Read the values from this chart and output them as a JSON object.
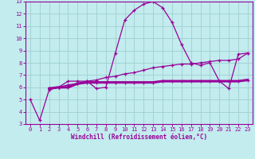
{
  "xlabel": "Windchill (Refroidissement éolien,°C)",
  "background_color": "#c2ecee",
  "grid_color": "#a0cfd1",
  "line_color": "#990099",
  "xlim": [
    -0.5,
    23.5
  ],
  "ylim": [
    3,
    13
  ],
  "xticks": [
    0,
    1,
    2,
    3,
    4,
    5,
    6,
    7,
    8,
    9,
    10,
    11,
    12,
    13,
    14,
    15,
    16,
    17,
    18,
    19,
    20,
    21,
    22,
    23
  ],
  "yticks": [
    3,
    4,
    5,
    6,
    7,
    8,
    9,
    10,
    11,
    12,
    13
  ],
  "line1_x": [
    0,
    1,
    2,
    3,
    4,
    5,
    6,
    7,
    8,
    9,
    10,
    11,
    12,
    13,
    14,
    15,
    16,
    17,
    18,
    19,
    20,
    21,
    22,
    23
  ],
  "line1_y": [
    5.0,
    3.3,
    5.8,
    6.0,
    6.5,
    6.5,
    6.5,
    5.9,
    6.0,
    8.8,
    11.5,
    12.3,
    12.8,
    13.0,
    12.5,
    11.3,
    9.5,
    8.0,
    7.8,
    8.0,
    6.5,
    5.9,
    8.7,
    8.8
  ],
  "line2_x": [
    2,
    3,
    4,
    5,
    6,
    7,
    8,
    9,
    10,
    11,
    12,
    13,
    14,
    15,
    16,
    17,
    18,
    19,
    20,
    21,
    22,
    23
  ],
  "line2_y": [
    5.9,
    6.0,
    6.0,
    6.3,
    6.4,
    6.4,
    6.4,
    6.4,
    6.4,
    6.4,
    6.4,
    6.4,
    6.5,
    6.5,
    6.5,
    6.5,
    6.5,
    6.5,
    6.5,
    6.5,
    6.5,
    6.6
  ],
  "line3_x": [
    2,
    3,
    4,
    5,
    6,
    7,
    8,
    9,
    10,
    11,
    12,
    13,
    14,
    15,
    16,
    17,
    18,
    19,
    20,
    21,
    22,
    23
  ],
  "line3_y": [
    5.9,
    6.0,
    6.2,
    6.3,
    6.5,
    6.6,
    6.8,
    6.9,
    7.1,
    7.2,
    7.4,
    7.6,
    7.7,
    7.8,
    7.9,
    7.9,
    8.0,
    8.1,
    8.2,
    8.2,
    8.3,
    8.8
  ]
}
